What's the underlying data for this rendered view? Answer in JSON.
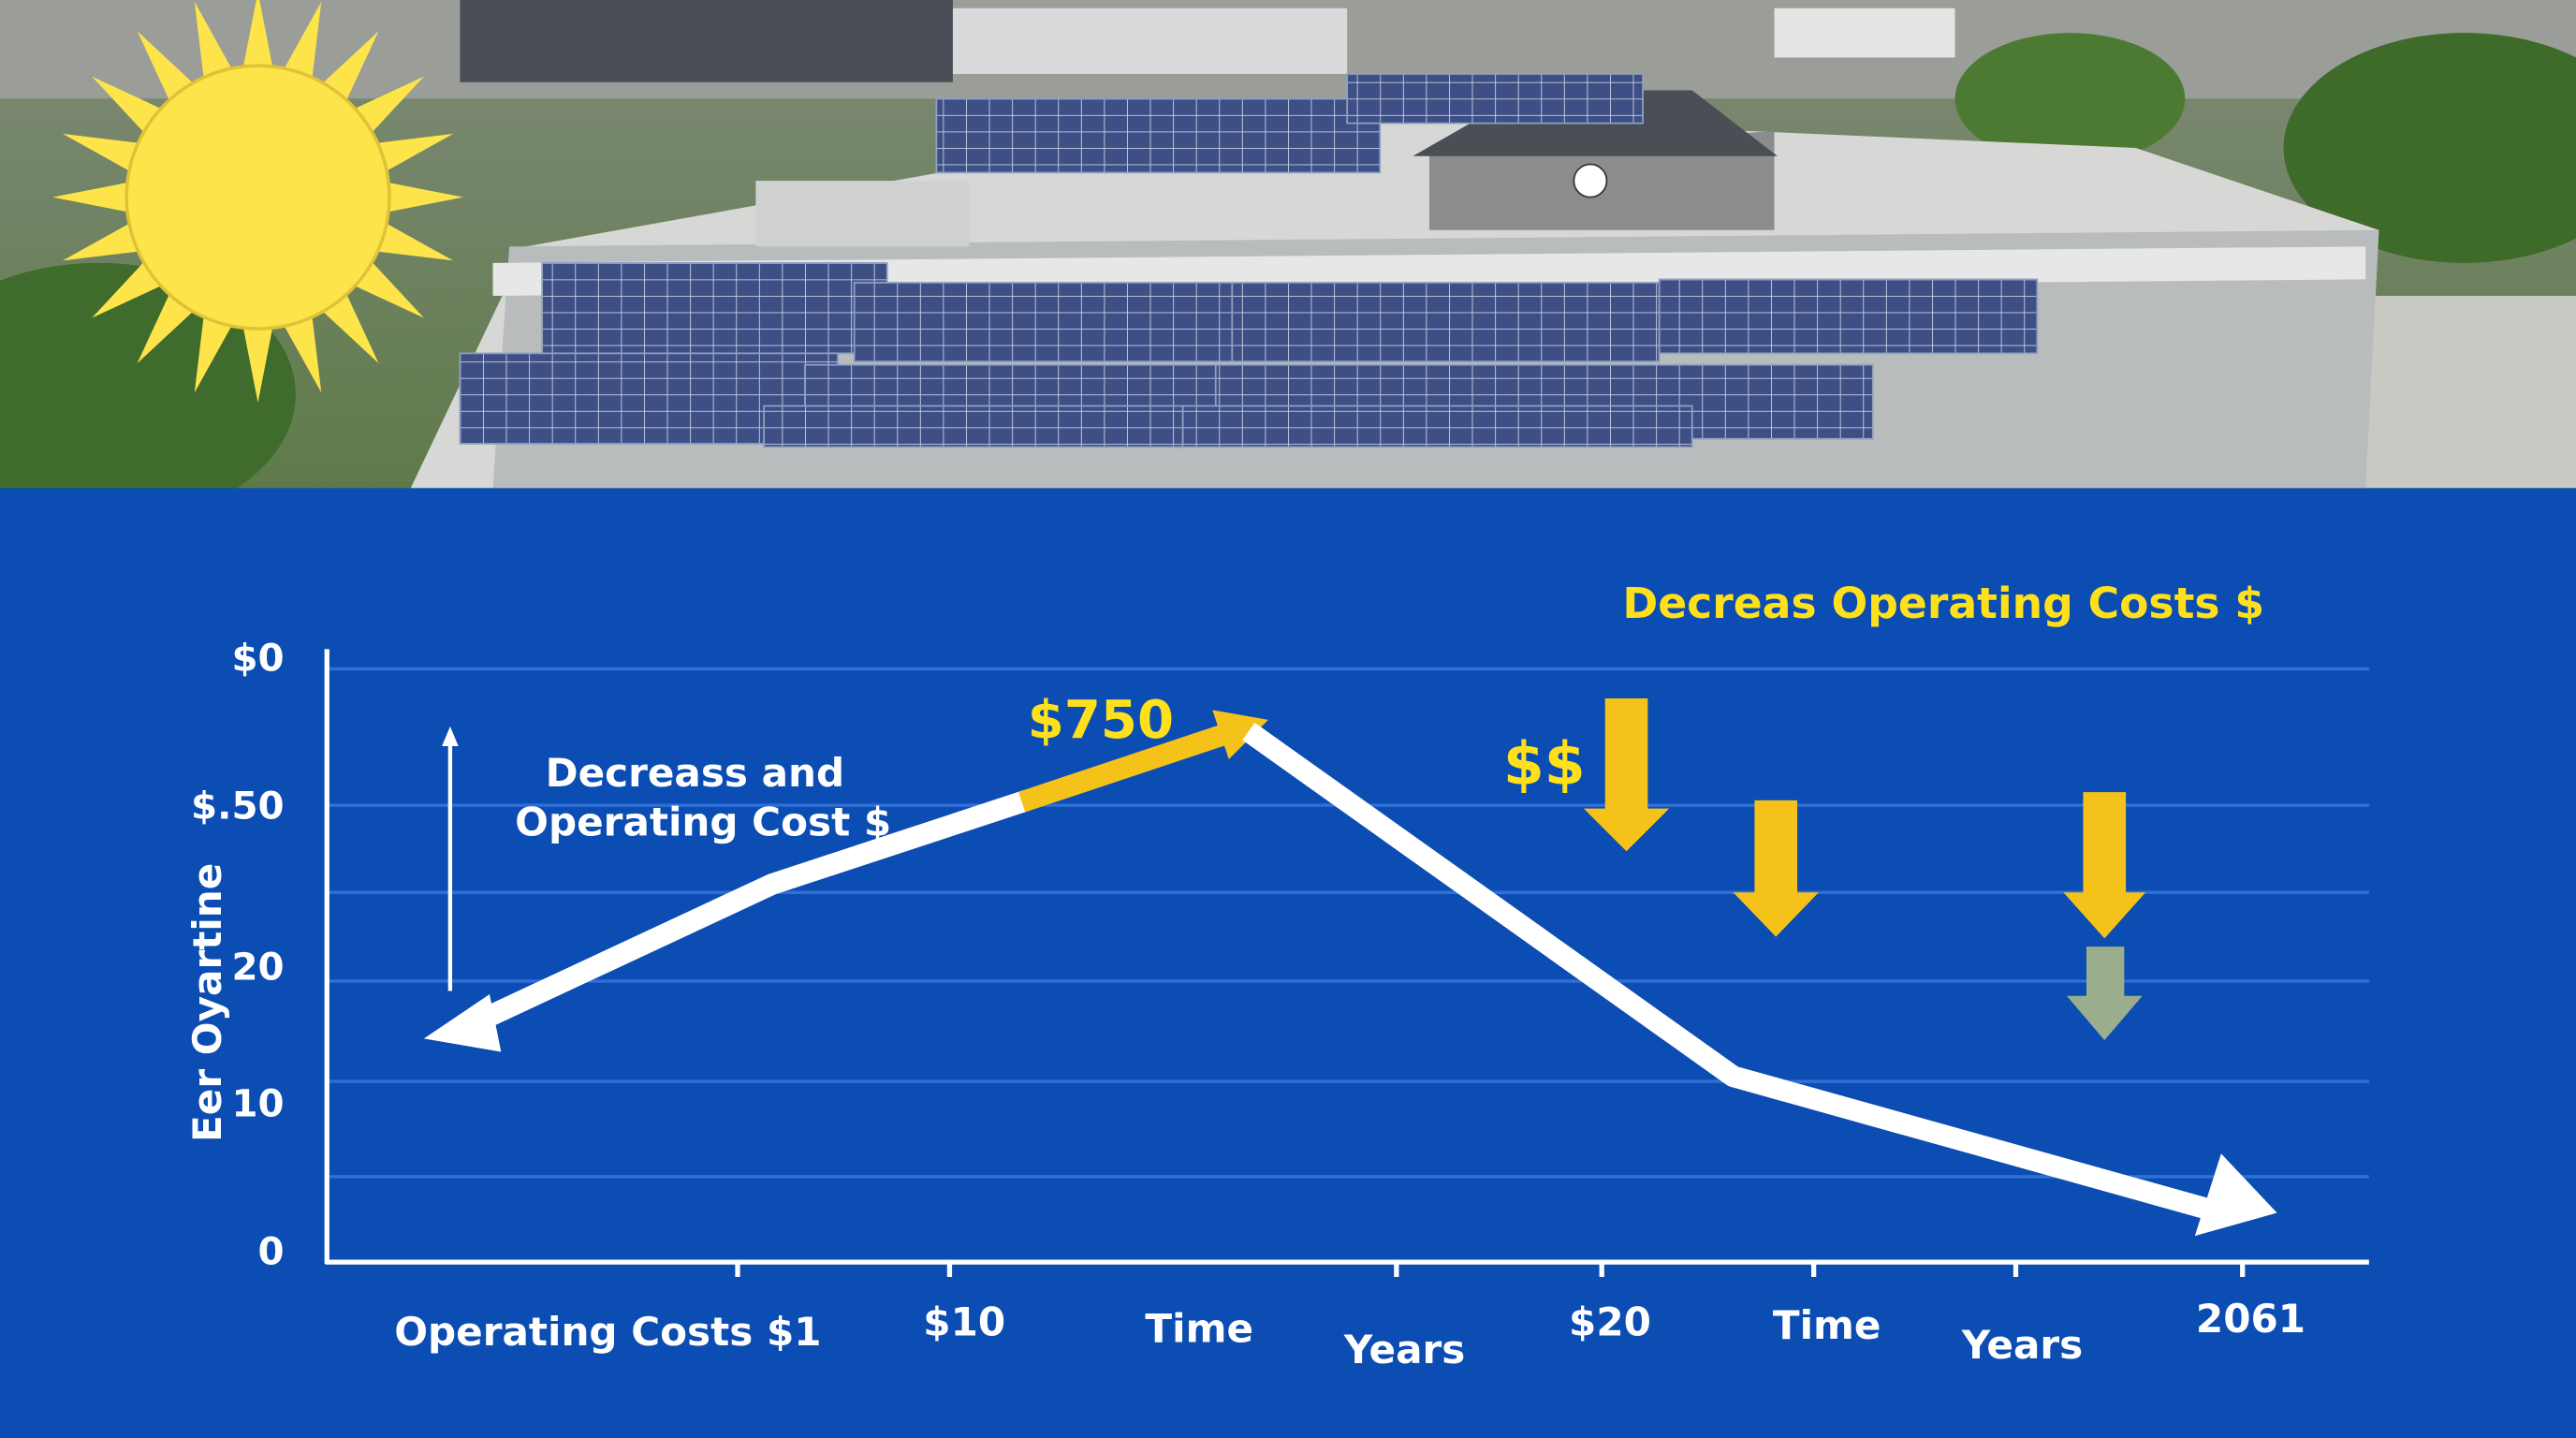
{
  "infographic": {
    "title": "Decreas Operating Costs $",
    "y_axis_title": "Eer Oyartine",
    "y_labels": [
      "$0",
      "$.50",
      "20",
      "10",
      "0"
    ],
    "x_labels": [
      "Operating Costs $1",
      "$10",
      "Time",
      "Years",
      "$20",
      "Time",
      "Years",
      "2061"
    ],
    "annotations": {
      "left_note": [
        "Decreass and",
        "Operating Cost $"
      ],
      "peak_label": "$750",
      "dollar_label": "$$"
    }
  }
}
